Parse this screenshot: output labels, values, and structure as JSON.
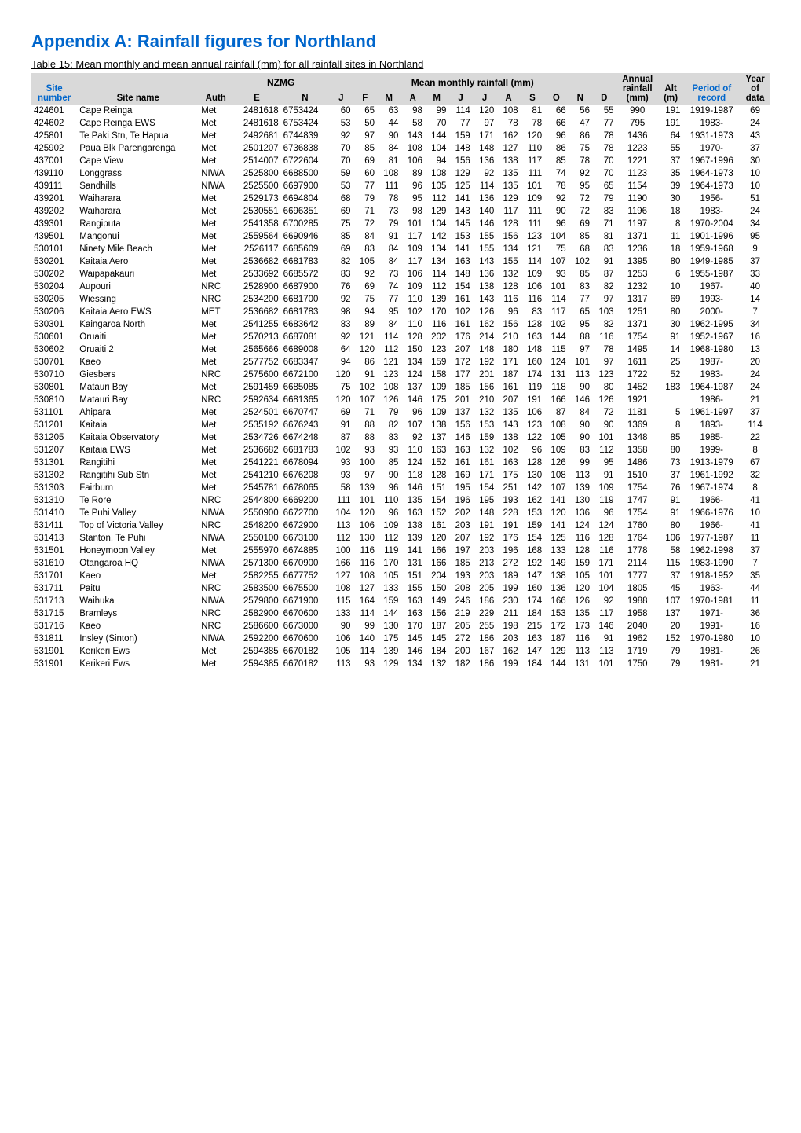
{
  "title": "Appendix A: Rainfall figures for Northland",
  "caption": "Table 15: Mean monthly and mean annual rainfall (mm) for all rainfall sites in Northland",
  "colors": {
    "heading": "#0066cc",
    "header_bg": "#d9d9d9",
    "text": "#000000",
    "bg": "#ffffff"
  },
  "header": {
    "group_nzmg": "NZMG",
    "group_mean": "Mean monthly rainfall (mm)",
    "site": "Site",
    "number": "number",
    "site_name": "Site name",
    "auth": "Auth",
    "e": "E",
    "n": "N",
    "months": [
      "J",
      "F",
      "M",
      "A",
      "M",
      "J",
      "J",
      "A",
      "S",
      "O",
      "N",
      "D"
    ],
    "annual1": "Annual",
    "annual2": "rainfall",
    "annual3": "(mm)",
    "alt1": "Alt",
    "alt2": "(m)",
    "period1": "Period of",
    "period2": "record",
    "year1": "Year",
    "year2": "of",
    "year3": "data"
  },
  "rows": [
    [
      "424601",
      "Cape Reinga",
      "Met",
      "2481618",
      "6753424",
      "60",
      "65",
      "63",
      "98",
      "99",
      "114",
      "120",
      "108",
      "81",
      "66",
      "56",
      "55",
      "990",
      "191",
      "1919-1987",
      "69"
    ],
    [
      "424602",
      "Cape Reinga EWS",
      "Met",
      "2481618",
      "6753424",
      "53",
      "50",
      "44",
      "58",
      "70",
      "77",
      "97",
      "78",
      "78",
      "66",
      "47",
      "77",
      "795",
      "191",
      "1983-",
      "24"
    ],
    [
      "425801",
      "Te Paki Stn, Te Hapua",
      "Met",
      "2492681",
      "6744839",
      "92",
      "97",
      "90",
      "143",
      "144",
      "159",
      "171",
      "162",
      "120",
      "96",
      "86",
      "78",
      "1436",
      "64",
      "1931-1973",
      "43"
    ],
    [
      "425902",
      "Paua Blk Parengarenga",
      "Met",
      "2501207",
      "6736838",
      "70",
      "85",
      "84",
      "108",
      "104",
      "148",
      "148",
      "127",
      "110",
      "86",
      "75",
      "78",
      "1223",
      "55",
      "1970-",
      "37"
    ],
    [
      "437001",
      "Cape View",
      "Met",
      "2514007",
      "6722604",
      "70",
      "69",
      "81",
      "106",
      "94",
      "156",
      "136",
      "138",
      "117",
      "85",
      "78",
      "70",
      "1221",
      "37",
      "1967-1996",
      "30"
    ],
    [
      "439110",
      "Longgrass",
      "NIWA",
      "2525800",
      "6688500",
      "59",
      "60",
      "108",
      "89",
      "108",
      "129",
      "92",
      "135",
      "111",
      "74",
      "92",
      "70",
      "1123",
      "35",
      "1964-1973",
      "10"
    ],
    [
      "439111",
      "Sandhills",
      "NIWA",
      "2525500",
      "6697900",
      "53",
      "77",
      "111",
      "96",
      "105",
      "125",
      "114",
      "135",
      "101",
      "78",
      "95",
      "65",
      "1154",
      "39",
      "1964-1973",
      "10"
    ],
    [
      "439201",
      "Waiharara",
      "Met",
      "2529173",
      "6694804",
      "68",
      "79",
      "78",
      "95",
      "112",
      "141",
      "136",
      "129",
      "109",
      "92",
      "72",
      "79",
      "1190",
      "30",
      "1956-",
      "51"
    ],
    [
      "439202",
      "Waiharara",
      "Met",
      "2530551",
      "6696351",
      "69",
      "71",
      "73",
      "98",
      "129",
      "143",
      "140",
      "117",
      "111",
      "90",
      "72",
      "83",
      "1196",
      "18",
      "1983-",
      "24"
    ],
    [
      "439301",
      "Rangiputa",
      "Met",
      "2541358",
      "6700285",
      "75",
      "72",
      "79",
      "101",
      "104",
      "145",
      "146",
      "128",
      "111",
      "96",
      "69",
      "71",
      "1197",
      "8",
      "1970-2004",
      "34"
    ],
    [
      "439501",
      "Mangonui",
      "Met",
      "2559564",
      "6690946",
      "85",
      "84",
      "91",
      "117",
      "142",
      "153",
      "155",
      "156",
      "123",
      "104",
      "85",
      "81",
      "1371",
      "11",
      "1901-1996",
      "95"
    ],
    [
      "530101",
      "Ninety Mile Beach",
      "Met",
      "2526117",
      "6685609",
      "69",
      "83",
      "84",
      "109",
      "134",
      "141",
      "155",
      "134",
      "121",
      "75",
      "68",
      "83",
      "1236",
      "18",
      "1959-1968",
      "9"
    ],
    [
      "530201",
      "Kaitaia Aero",
      "Met",
      "2536682",
      "6681783",
      "82",
      "105",
      "84",
      "117",
      "134",
      "163",
      "143",
      "155",
      "114",
      "107",
      "102",
      "91",
      "1395",
      "80",
      "1949-1985",
      "37"
    ],
    [
      "530202",
      "Waipapakauri",
      "Met",
      "2533692",
      "6685572",
      "83",
      "92",
      "73",
      "106",
      "114",
      "148",
      "136",
      "132",
      "109",
      "93",
      "85",
      "87",
      "1253",
      "6",
      "1955-1987",
      "33"
    ],
    [
      "530204",
      "Aupouri",
      "NRC",
      "2528900",
      "6687900",
      "76",
      "69",
      "74",
      "109",
      "112",
      "154",
      "138",
      "128",
      "106",
      "101",
      "83",
      "82",
      "1232",
      "10",
      "1967-",
      "40"
    ],
    [
      "530205",
      "Wiessing",
      "NRC",
      "2534200",
      "6681700",
      "92",
      "75",
      "77",
      "110",
      "139",
      "161",
      "143",
      "116",
      "116",
      "114",
      "77",
      "97",
      "1317",
      "69",
      "1993-",
      "14"
    ],
    [
      "530206",
      "Kaitaia Aero EWS",
      "MET",
      "2536682",
      "6681783",
      "98",
      "94",
      "95",
      "102",
      "170",
      "102",
      "126",
      "96",
      "83",
      "117",
      "65",
      "103",
      "1251",
      "80",
      "2000-",
      "7"
    ],
    [
      "530301",
      "Kaingaroa North",
      "Met",
      "2541255",
      "6683642",
      "83",
      "89",
      "84",
      "110",
      "116",
      "161",
      "162",
      "156",
      "128",
      "102",
      "95",
      "82",
      "1371",
      "30",
      "1962-1995",
      "34"
    ],
    [
      "530601",
      "Oruaiti",
      "Met",
      "2570213",
      "6687081",
      "92",
      "121",
      "114",
      "128",
      "202",
      "176",
      "214",
      "210",
      "163",
      "144",
      "88",
      "116",
      "1754",
      "91",
      "1952-1967",
      "16"
    ],
    [
      "530602",
      "Oruaiti 2",
      "Met",
      "2565666",
      "6689008",
      "64",
      "120",
      "112",
      "150",
      "123",
      "207",
      "148",
      "180",
      "148",
      "115",
      "97",
      "78",
      "1495",
      "14",
      "1968-1980",
      "13"
    ],
    [
      "530701",
      "Kaeo",
      "Met",
      "2577752",
      "6683347",
      "94",
      "86",
      "121",
      "134",
      "159",
      "172",
      "192",
      "171",
      "160",
      "124",
      "101",
      "97",
      "1611",
      "25",
      "1987-",
      "20"
    ],
    [
      "530710",
      "Giesbers",
      "NRC",
      "2575600",
      "6672100",
      "120",
      "91",
      "123",
      "124",
      "158",
      "177",
      "201",
      "187",
      "174",
      "131",
      "113",
      "123",
      "1722",
      "52",
      "1983-",
      "24"
    ],
    [
      "530801",
      "Matauri Bay",
      "Met",
      "2591459",
      "6685085",
      "75",
      "102",
      "108",
      "137",
      "109",
      "185",
      "156",
      "161",
      "119",
      "118",
      "90",
      "80",
      "1452",
      "183",
      "1964-1987",
      "24"
    ],
    [
      "530810",
      "Matauri Bay",
      "NRC",
      "2592634",
      "6681365",
      "120",
      "107",
      "126",
      "146",
      "175",
      "201",
      "210",
      "207",
      "191",
      "166",
      "146",
      "126",
      "1921",
      "",
      "1986-",
      "21"
    ],
    [
      "531101",
      "Ahipara",
      "Met",
      "2524501",
      "6670747",
      "69",
      "71",
      "79",
      "96",
      "109",
      "137",
      "132",
      "135",
      "106",
      "87",
      "84",
      "72",
      "1181",
      "5",
      "1961-1997",
      "37"
    ],
    [
      "531201",
      "Kaitaia",
      "Met",
      "2535192",
      "6676243",
      "91",
      "88",
      "82",
      "107",
      "138",
      "156",
      "153",
      "143",
      "123",
      "108",
      "90",
      "90",
      "1369",
      "8",
      "1893-",
      "114"
    ],
    [
      "531205",
      "Kaitaia Observatory",
      "Met",
      "2534726",
      "6674248",
      "87",
      "88",
      "83",
      "92",
      "137",
      "146",
      "159",
      "138",
      "122",
      "105",
      "90",
      "101",
      "1348",
      "85",
      "1985-",
      "22"
    ],
    [
      "531207",
      "Kaitaia EWS",
      "Met",
      "2536682",
      "6681783",
      "102",
      "93",
      "93",
      "110",
      "163",
      "163",
      "132",
      "102",
      "96",
      "109",
      "83",
      "112",
      "1358",
      "80",
      "1999-",
      "8"
    ],
    [
      "531301",
      "Rangitihi",
      "Met",
      "2541221",
      "6678094",
      "93",
      "100",
      "85",
      "124",
      "152",
      "161",
      "161",
      "163",
      "128",
      "126",
      "99",
      "95",
      "1486",
      "73",
      "1913-1979",
      "67"
    ],
    [
      "531302",
      "Rangitihi Sub Stn",
      "Met",
      "2541210",
      "6676208",
      "93",
      "97",
      "90",
      "118",
      "128",
      "169",
      "171",
      "175",
      "130",
      "108",
      "113",
      "91",
      "1510",
      "37",
      "1961-1992",
      "32"
    ],
    [
      "531303",
      "Fairburn",
      "Met",
      "2545781",
      "6678065",
      "58",
      "139",
      "96",
      "146",
      "151",
      "195",
      "154",
      "251",
      "142",
      "107",
      "139",
      "109",
      "1754",
      "76",
      "1967-1974",
      "8"
    ],
    [
      "531310",
      "Te Rore",
      "NRC",
      "2544800",
      "6669200",
      "111",
      "101",
      "110",
      "135",
      "154",
      "196",
      "195",
      "193",
      "162",
      "141",
      "130",
      "119",
      "1747",
      "91",
      "1966-",
      "41"
    ],
    [
      "531410",
      "Te Puhi Valley",
      "NIWA",
      "2550900",
      "6672700",
      "104",
      "120",
      "96",
      "163",
      "152",
      "202",
      "148",
      "228",
      "153",
      "120",
      "136",
      "96",
      "1754",
      "91",
      "1966-1976",
      "10"
    ],
    [
      "531411",
      "Top of Victoria Valley",
      "NRC",
      "2548200",
      "6672900",
      "113",
      "106",
      "109",
      "138",
      "161",
      "203",
      "191",
      "191",
      "159",
      "141",
      "124",
      "124",
      "1760",
      "80",
      "1966-",
      "41"
    ],
    [
      "531413",
      "Stanton, Te Puhi",
      "NIWA",
      "2550100",
      "6673100",
      "112",
      "130",
      "112",
      "139",
      "120",
      "207",
      "192",
      "176",
      "154",
      "125",
      "116",
      "128",
      "1764",
      "106",
      "1977-1987",
      "11"
    ],
    [
      "531501",
      "Honeymoon Valley",
      "Met",
      "2555970",
      "6674885",
      "100",
      "116",
      "119",
      "141",
      "166",
      "197",
      "203",
      "196",
      "168",
      "133",
      "128",
      "116",
      "1778",
      "58",
      "1962-1998",
      "37"
    ],
    [
      "531610",
      "Otangaroa HQ",
      "NIWA",
      "2571300",
      "6670900",
      "166",
      "116",
      "170",
      "131",
      "166",
      "185",
      "213",
      "272",
      "192",
      "149",
      "159",
      "171",
      "2114",
      "115",
      "1983-1990",
      "7"
    ],
    [
      "531701",
      "Kaeo",
      "Met",
      "2582255",
      "6677752",
      "127",
      "108",
      "105",
      "151",
      "204",
      "193",
      "203",
      "189",
      "147",
      "138",
      "105",
      "101",
      "1777",
      "37",
      "1918-1952",
      "35"
    ],
    [
      "531711",
      "Paitu",
      "NRC",
      "2583500",
      "6675500",
      "108",
      "127",
      "133",
      "155",
      "150",
      "208",
      "205",
      "199",
      "160",
      "136",
      "120",
      "104",
      "1805",
      "45",
      "1963-",
      "44"
    ],
    [
      "531713",
      "Waihuka",
      "NIWA",
      "2579800",
      "6671900",
      "115",
      "164",
      "159",
      "163",
      "149",
      "246",
      "186",
      "230",
      "174",
      "166",
      "126",
      "92",
      "1988",
      "107",
      "1970-1981",
      "11"
    ],
    [
      "531715",
      "Bramleys",
      "NRC",
      "2582900",
      "6670600",
      "133",
      "114",
      "144",
      "163",
      "156",
      "219",
      "229",
      "211",
      "184",
      "153",
      "135",
      "117",
      "1958",
      "137",
      "1971-",
      "36"
    ],
    [
      "531716",
      "Kaeo",
      "NRC",
      "2586600",
      "6673000",
      "90",
      "99",
      "130",
      "170",
      "187",
      "205",
      "255",
      "198",
      "215",
      "172",
      "173",
      "146",
      "2040",
      "20",
      "1991-",
      "16"
    ],
    [
      "531811",
      "Insley (Sinton)",
      "NIWA",
      "2592200",
      "6670600",
      "106",
      "140",
      "175",
      "145",
      "145",
      "272",
      "186",
      "203",
      "163",
      "187",
      "116",
      "91",
      "1962",
      "152",
      "1970-1980",
      "10"
    ],
    [
      "531901",
      "Kerikeri Ews",
      "Met",
      "2594385",
      "6670182",
      "105",
      "114",
      "139",
      "146",
      "184",
      "200",
      "167",
      "162",
      "147",
      "129",
      "113",
      "113",
      "1719",
      "79",
      "1981-",
      "26"
    ],
    [
      "531901",
      "Kerikeri Ews",
      "Met",
      "2594385",
      "6670182",
      "113",
      "93",
      "129",
      "134",
      "132",
      "182",
      "186",
      "199",
      "184",
      "144",
      "131",
      "101",
      "1750",
      "79",
      "1981-",
      "21"
    ]
  ]
}
